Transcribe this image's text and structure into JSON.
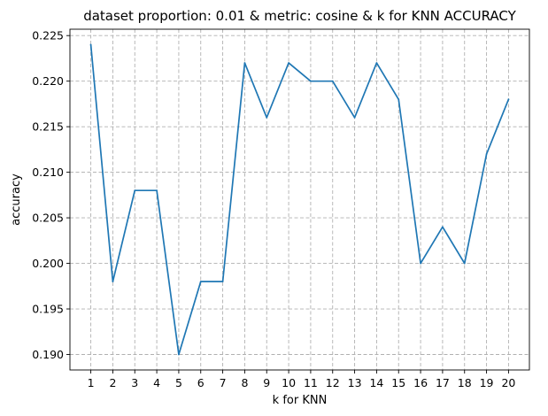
{
  "chart_data": {
    "type": "line",
    "title": "dataset proportion: 0.01 & metric: cosine & k for KNN ACCURACY",
    "xlabel": "k for KNN",
    "ylabel": "accuracy",
    "x": [
      1,
      2,
      3,
      4,
      5,
      6,
      7,
      8,
      9,
      10,
      11,
      12,
      13,
      14,
      15,
      16,
      17,
      18,
      19,
      20
    ],
    "x_tick_labels": [
      "1",
      "2",
      "3",
      "4",
      "5",
      "6",
      "7",
      "8",
      "9",
      "10",
      "11",
      "12",
      "13",
      "14",
      "15",
      "16",
      "17",
      "18",
      "19",
      "20"
    ],
    "series": [
      {
        "values": [
          0.224,
          0.198,
          0.208,
          0.208,
          0.19,
          0.198,
          0.198,
          0.222,
          0.216,
          0.222,
          0.22,
          0.22,
          0.216,
          0.222,
          0.218,
          0.2,
          0.204,
          0.2,
          0.212,
          0.218
        ],
        "color": "#1f77b4"
      }
    ],
    "xlim": [
      0.05,
      20.95
    ],
    "ylim": [
      0.1883,
      0.2257
    ],
    "y_ticks": [
      0.19,
      0.195,
      0.2,
      0.205,
      0.21,
      0.215,
      0.22,
      0.225
    ],
    "y_tick_labels": [
      "0.190",
      "0.195",
      "0.200",
      "0.205",
      "0.210",
      "0.215",
      "0.220",
      "0.225"
    ],
    "grid": true,
    "legend": "none"
  }
}
